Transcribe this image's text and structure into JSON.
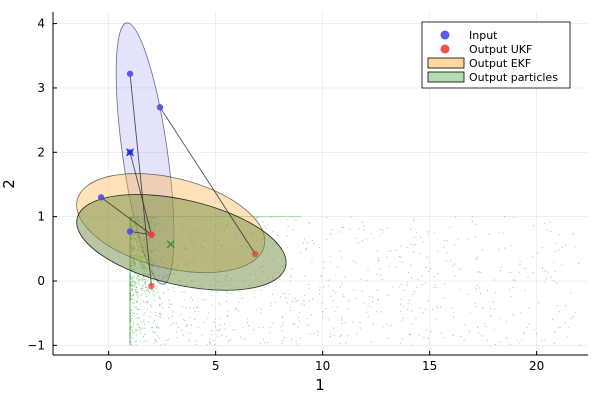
{
  "chart_data": {
    "type": "scatter",
    "xlabel": "1",
    "ylabel": "2",
    "xlim": [
      -2.6,
      22.4
    ],
    "ylim": [
      -1.15,
      4.18
    ],
    "x_ticks": [
      0,
      5,
      10,
      15,
      20
    ],
    "y_ticks": [
      -1,
      0,
      1,
      2,
      3,
      4
    ],
    "grid": true,
    "legend_position": "top-right",
    "legend": [
      {
        "label": "Input",
        "kind": "marker",
        "color": "#4a4af0"
      },
      {
        "label": "Output UKF",
        "kind": "marker",
        "color": "#e8413a"
      },
      {
        "label": "Output EKF",
        "kind": "patch",
        "color": "#ffd9a0"
      },
      {
        "label": "Output particles",
        "kind": "patch",
        "color": "#b4dcb0"
      }
    ],
    "input_points": [
      {
        "x": 1.0,
        "y": 3.22
      },
      {
        "x": 2.4,
        "y": 2.7
      },
      {
        "x": 1.0,
        "y": 2.0
      },
      {
        "x": 1.0,
        "y": 0.77
      },
      {
        "x": -0.35,
        "y": 1.3
      }
    ],
    "input_mean": {
      "x": 1.0,
      "y": 2.0
    },
    "output_ukf_points": [
      {
        "x": 2.0,
        "y": -0.08
      },
      {
        "x": 6.85,
        "y": 0.42
      },
      {
        "x": 2.0,
        "y": 0.72
      },
      {
        "x": 2.0,
        "y": 0.72
      },
      {
        "x": 2.0,
        "y": 0.72
      }
    ],
    "output_mean": {
      "x": 2.9,
      "y": 0.57
    },
    "ellipses": [
      {
        "series": "Input",
        "cx": 1.7,
        "cy": 1.98,
        "rx_data": 1.05,
        "ry_data": 2.05,
        "angle_deg": -8,
        "fill": "#6666ee",
        "fill_opacity": 0.18
      },
      {
        "series": "Output EKF",
        "cx": 2.9,
        "cy": 0.9,
        "rx_data": 4.5,
        "ry_data": 0.7,
        "angle_deg": 14,
        "fill": "#ffb347",
        "fill_opacity": 0.38
      },
      {
        "series": "Output UKF",
        "cx": 3.4,
        "cy": 0.6,
        "rx_data": 5.0,
        "ry_data": 0.66,
        "angle_deg": 13,
        "fill": "#e8413a",
        "fill_opacity": 0.22
      },
      {
        "series": "Output particles",
        "cx": 3.4,
        "cy": 0.6,
        "rx_data": 5.0,
        "ry_data": 0.66,
        "angle_deg": 13,
        "fill": "#4caf50",
        "fill_opacity": 0.38
      }
    ],
    "particles": {
      "x_range": [
        1.0,
        22.0
      ],
      "y_range": [
        -1.0,
        1.0
      ],
      "count": 1600,
      "color": "#2e9e2e",
      "dense_region": {
        "x": [
          1.0,
          2.2
        ],
        "y": [
          -0.2,
          1.0
        ]
      }
    }
  }
}
